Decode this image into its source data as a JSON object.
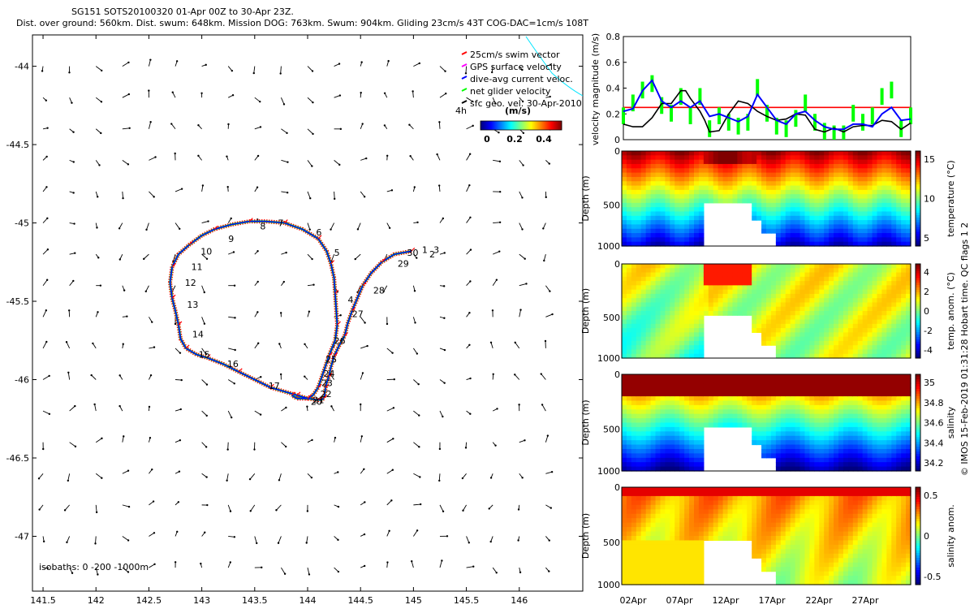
{
  "header": {
    "line1": "SG151 SOTS20100320 01-Apr 00Z to 30-Apr 23Z.",
    "line2": "Dist. over ground: 560km. Dist. swum: 648km. Mission DOG: 763km. Swum: 904km. Gliding 23cm/s 43T COG-DAC=1cm/s 108T"
  },
  "side_note": "© IMOS 15-Feb-2019 01:31:28 Hobart time. QC flags 1  2",
  "colors": {
    "swim": "#ff0000",
    "gps": "#ff00ff",
    "dac": "#0000ff",
    "net": "#00ff00",
    "geo": "#000000",
    "cyan": "#00e5ff"
  },
  "chart_data": [
    {
      "type": "scatter",
      "name": "glider-track-map",
      "xlim": [
        141.4,
        146.6
      ],
      "ylim": [
        -47.35,
        -43.8
      ],
      "xticks": [
        141.5,
        142,
        142.5,
        143,
        143.5,
        144,
        144.5,
        145,
        145.5,
        146
      ],
      "xtick_labels": [
        "141.5",
        "142",
        "142.5",
        "143",
        "143.5",
        "144",
        "144.5",
        "145",
        "145.5",
        "146"
      ],
      "yticks": [
        -44,
        -44.5,
        -45,
        -45.5,
        -46,
        -46.5,
        -47
      ],
      "ytick_labels": [
        "-44",
        "-44.5",
        "-45",
        "-45.5",
        "-46",
        "-46.5",
        "-47"
      ],
      "track": {
        "lon": [
          144.98,
          144.82,
          144.7,
          144.6,
          144.52,
          144.47,
          144.42,
          144.38,
          144.35,
          144.3,
          144.25,
          144.22,
          144.2,
          144.18,
          144.17,
          144.16,
          144.15,
          144.13,
          144.1,
          144.0,
          143.9,
          143.8,
          143.65,
          143.5,
          143.35,
          143.2,
          143.05,
          142.95,
          142.85,
          142.8,
          142.78,
          142.75,
          142.72,
          142.7,
          142.72,
          142.78,
          142.88,
          143.0,
          143.12,
          143.28,
          143.45,
          143.6,
          143.78,
          143.95,
          144.1,
          144.18,
          144.22,
          144.25,
          144.26,
          144.27,
          144.28,
          144.26,
          144.2,
          144.15,
          144.1,
          144.05,
          144.0,
          143.9,
          143.85
        ],
        "lat": [
          -45.18,
          -45.2,
          -45.25,
          -45.32,
          -45.4,
          -45.48,
          -45.56,
          -45.64,
          -45.72,
          -45.78,
          -45.85,
          -45.92,
          -45.98,
          -46.02,
          -46.05,
          -46.1,
          -46.12,
          -46.13,
          -46.13,
          -46.12,
          -46.1,
          -46.08,
          -46.05,
          -46.0,
          -45.95,
          -45.9,
          -45.86,
          -45.84,
          -45.8,
          -45.74,
          -45.65,
          -45.56,
          -45.48,
          -45.38,
          -45.28,
          -45.2,
          -45.14,
          -45.08,
          -45.04,
          -45.01,
          -44.99,
          -44.99,
          -45.0,
          -45.04,
          -45.1,
          -45.18,
          -45.26,
          -45.35,
          -45.45,
          -45.55,
          -45.65,
          -45.75,
          -45.85,
          -45.95,
          -46.05,
          -46.1,
          -46.12,
          -46.12,
          -46.1
        ]
      },
      "day_labels": [
        {
          "t": "1",
          "lon": 145.08,
          "lat": -45.17
        },
        {
          "t": "2",
          "lon": 145.15,
          "lat": -45.2
        },
        {
          "t": "3",
          "lon": 145.19,
          "lat": -45.17
        },
        {
          "t": "4",
          "lon": 144.38,
          "lat": -45.49
        },
        {
          "t": "5",
          "lon": 144.25,
          "lat": -45.19
        },
        {
          "t": "6",
          "lon": 144.08,
          "lat": -45.06
        },
        {
          "t": "7",
          "lon": 143.72,
          "lat": -45.0
        },
        {
          "t": "8",
          "lon": 143.55,
          "lat": -45.02
        },
        {
          "t": "9",
          "lon": 143.25,
          "lat": -45.1
        },
        {
          "t": "10",
          "lon": 142.99,
          "lat": -45.18
        },
        {
          "t": "11",
          "lon": 142.9,
          "lat": -45.28
        },
        {
          "t": "12",
          "lon": 142.84,
          "lat": -45.38
        },
        {
          "t": "13",
          "lon": 142.86,
          "lat": -45.52
        },
        {
          "t": "14",
          "lon": 142.91,
          "lat": -45.71
        },
        {
          "t": "15",
          "lon": 142.97,
          "lat": -45.84
        },
        {
          "t": "16",
          "lon": 143.24,
          "lat": -45.9
        },
        {
          "t": "17",
          "lon": 143.63,
          "lat": -46.04
        },
        {
          "t": "20",
          "lon": 144.03,
          "lat": -46.14
        },
        {
          "t": "21",
          "lon": 144.05,
          "lat": -46.13
        },
        {
          "t": "22",
          "lon": 144.12,
          "lat": -46.09
        },
        {
          "t": "23",
          "lon": 144.13,
          "lat": -46.02
        },
        {
          "t": "24",
          "lon": 144.15,
          "lat": -45.96
        },
        {
          "t": "25",
          "lon": 144.17,
          "lat": -45.87
        },
        {
          "t": "26",
          "lon": 144.25,
          "lat": -45.75
        },
        {
          "t": "27",
          "lon": 144.42,
          "lat": -45.58
        },
        {
          "t": "28",
          "lon": 144.62,
          "lat": -45.43
        },
        {
          "t": "29",
          "lon": 144.85,
          "lat": -45.26
        },
        {
          "t": "30",
          "lon": 144.94,
          "lat": -45.19
        }
      ],
      "legend": [
        "25cm/s swim vector",
        "GPS surface velocity",
        "dive-avg current veloc.",
        "net glider velocity",
        "sfc geo. vel. 30-Apr-2010"
      ],
      "legend_note": "4h",
      "colorbar": {
        "label": "(m/s)",
        "ticks": [
          "0",
          "0.2",
          "0.4"
        ]
      },
      "isobaths_note": "isobaths: 0  -200 -1000m"
    },
    {
      "type": "line",
      "name": "velocity-magnitude",
      "ylabel": "velocity magnitude (m/s)",
      "ylim": [
        0,
        0.8
      ],
      "yticks": [
        "0",
        "0.2",
        "0.4",
        "0.6",
        "0.8"
      ],
      "xlim": [
        0,
        30
      ],
      "reference_line": 0.25,
      "series": [
        {
          "color": "#000000",
          "x": [
            0,
            1,
            2,
            3,
            4,
            5,
            6,
            6.5,
            7,
            8,
            8.5,
            9,
            10,
            11,
            12,
            13,
            14,
            15,
            16,
            17,
            18,
            19,
            20,
            21,
            22,
            23,
            24,
            25,
            26,
            27,
            28,
            29,
            30
          ],
          "values": [
            0.12,
            0.1,
            0.1,
            0.17,
            0.28,
            0.28,
            0.38,
            0.38,
            0.32,
            0.22,
            0.15,
            0.06,
            0.07,
            0.2,
            0.3,
            0.28,
            0.22,
            0.18,
            0.15,
            0.16,
            0.2,
            0.19,
            0.08,
            0.06,
            0.09,
            0.06,
            0.1,
            0.11,
            0.11,
            0.15,
            0.14,
            0.08,
            0.13
          ]
        },
        {
          "color": "#0000ff",
          "x": [
            0,
            1,
            2,
            3,
            4,
            5,
            6,
            7,
            8,
            9,
            10,
            11,
            12,
            13,
            14,
            15,
            16,
            17,
            18,
            19,
            20,
            21,
            22,
            23,
            24,
            25,
            26,
            27,
            28,
            29,
            30
          ],
          "values": [
            0.22,
            0.24,
            0.38,
            0.46,
            0.3,
            0.25,
            0.3,
            0.25,
            0.3,
            0.18,
            0.2,
            0.17,
            0.14,
            0.18,
            0.35,
            0.25,
            0.15,
            0.12,
            0.2,
            0.22,
            0.15,
            0.1,
            0.08,
            0.08,
            0.12,
            0.12,
            0.1,
            0.2,
            0.25,
            0.15,
            0.16
          ]
        },
        {
          "color": "#00ff00",
          "x": [
            0,
            1,
            2,
            3,
            4,
            5,
            6,
            7,
            8,
            9,
            10,
            11,
            12,
            13,
            14,
            15,
            16,
            17,
            18,
            19,
            20,
            21,
            22,
            23,
            24,
            25,
            26,
            27,
            28,
            29,
            30
          ],
          "values": [
            0.2,
            0.3,
            0.4,
            0.45,
            0.28,
            0.22,
            0.35,
            0.2,
            0.35,
            0.1,
            0.2,
            0.15,
            0.12,
            0.15,
            0.42,
            0.22,
            0.12,
            0.1,
            0.18,
            0.3,
            0.15,
            0.08,
            0.06,
            0.06,
            0.22,
            0.15,
            0.2,
            0.35,
            0.4,
            0.1,
            0.2
          ]
        }
      ]
    },
    {
      "type": "heatmap",
      "name": "depth-sections",
      "xtick_labels": [
        "02Apr",
        "07Apr",
        "12Apr",
        "17Apr",
        "22Apr",
        "27Apr"
      ],
      "panels": [
        {
          "id": "temperature",
          "ylabel": "Depth (m)",
          "yticks": [
            "0",
            "500",
            "1000"
          ],
          "colorbar_label": "temperature (°C)",
          "colorbar_ticks": [
            "15",
            "10",
            "5"
          ]
        },
        {
          "id": "temp-anom",
          "ylabel": "Depth (m)",
          "yticks": [
            "0",
            "500",
            "1000"
          ],
          "colorbar_label": "temp. anom. (°C)",
          "colorbar_ticks": [
            "4",
            "2",
            "0",
            "-2",
            "-4"
          ]
        },
        {
          "id": "salinity",
          "ylabel": "Depth (m)",
          "yticks": [
            "0",
            "500",
            "1000"
          ],
          "colorbar_label": "salinity",
          "colorbar_ticks": [
            "35",
            "34.8",
            "34.6",
            "34.4",
            "34.2"
          ]
        },
        {
          "id": "salinity-anom",
          "ylabel": "Depth (m)",
          "yticks": [
            "0",
            "500",
            "1000"
          ],
          "colorbar_label": "salinity anom.",
          "colorbar_ticks": [
            "0.5",
            "0",
            "-0.5"
          ]
        }
      ]
    }
  ]
}
